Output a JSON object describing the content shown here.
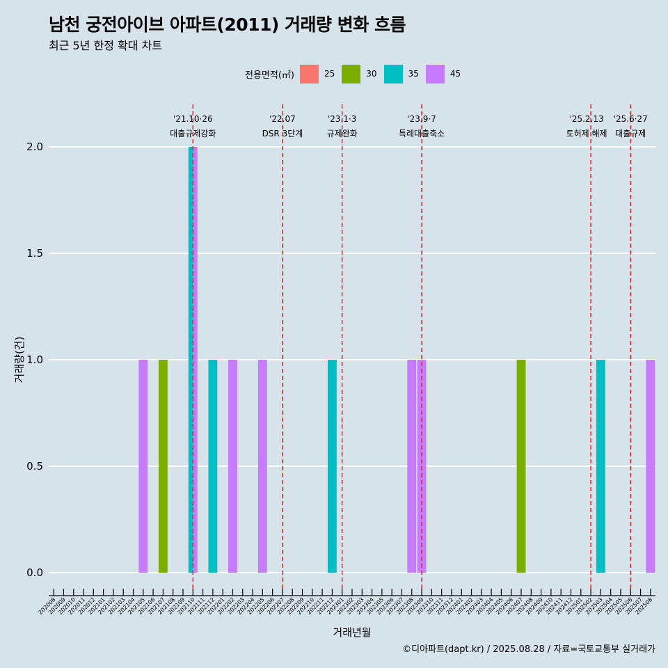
{
  "title": "남천 궁전아이브 아파트(2011) 거래량 변화 흐름",
  "subtitle": "최근 5년 한정 확대 차트",
  "caption": "©디아파트(dapt.kr) / 2025.08.28 / 자료=국토교통부 실거래가",
  "legend": {
    "title": "전용면적(㎡)",
    "items": [
      {
        "label": "25",
        "color": "#f8766d"
      },
      {
        "label": "30",
        "color": "#7cae00"
      },
      {
        "label": "35",
        "color": "#00bfc4"
      },
      {
        "label": "45",
        "color": "#c77cff"
      }
    ]
  },
  "chart_data": {
    "type": "bar",
    "xlabel": "거래년월",
    "ylabel": "거래량(건)",
    "ylim": [
      0,
      2
    ],
    "yticks": [
      "0.0",
      "0.5",
      "1.0",
      "1.5",
      "2.0"
    ],
    "grid": true,
    "categories": [
      "202008",
      "202009",
      "202010",
      "202011",
      "202012",
      "202101",
      "202102",
      "202103",
      "202104",
      "202105",
      "202106",
      "202107",
      "202108",
      "202109",
      "202110",
      "202111",
      "202112",
      "202201",
      "202202",
      "202203",
      "202204",
      "202205",
      "202206",
      "202207",
      "202208",
      "202209",
      "202210",
      "202211",
      "202212",
      "202301",
      "202302",
      "202303",
      "202304",
      "202305",
      "202306",
      "202307",
      "202308",
      "202309",
      "202310",
      "202311",
      "202312",
      "202401",
      "202402",
      "202403",
      "202404",
      "202405",
      "202406",
      "202407",
      "202408",
      "202409",
      "202410",
      "202411",
      "202412",
      "202501",
      "202502",
      "202503",
      "202504",
      "202505",
      "202506",
      "202507",
      "202508"
    ],
    "series": [
      {
        "name": "30",
        "color": "#7cae00",
        "points": [
          {
            "x": "202107",
            "y": 1
          },
          {
            "x": "202407",
            "y": 1
          }
        ]
      },
      {
        "name": "35",
        "color": "#00bfc4",
        "points": [
          {
            "x": "202110",
            "y": 2
          },
          {
            "x": "202112",
            "y": 1
          },
          {
            "x": "202212",
            "y": 1
          },
          {
            "x": "202503",
            "y": 1
          }
        ]
      },
      {
        "name": "45",
        "color": "#c77cff",
        "points": [
          {
            "x": "202105",
            "y": 1
          },
          {
            "x": "202110",
            "y": 2
          },
          {
            "x": "202202",
            "y": 1
          },
          {
            "x": "202205",
            "y": 1
          },
          {
            "x": "202308",
            "y": 1
          },
          {
            "x": "202309",
            "y": 1
          },
          {
            "x": "202508",
            "y": 1
          }
        ]
      }
    ],
    "annotations": [
      {
        "x": "202110",
        "date": "'21.10·26",
        "label": "대출규제강화"
      },
      {
        "x": "202207",
        "date": "'22.07",
        "label": "DSR 3단계"
      },
      {
        "x": "202301",
        "date": "'23.1·3",
        "label": "규제완화"
      },
      {
        "x": "202309",
        "date": "'23.9·7",
        "label": "특례대출축소"
      },
      {
        "x": "202502",
        "date": "'25.2.13",
        "label": "토허제 해제"
      },
      {
        "x": "202506",
        "date": "'25.6·27",
        "label": "대출규제"
      }
    ]
  }
}
